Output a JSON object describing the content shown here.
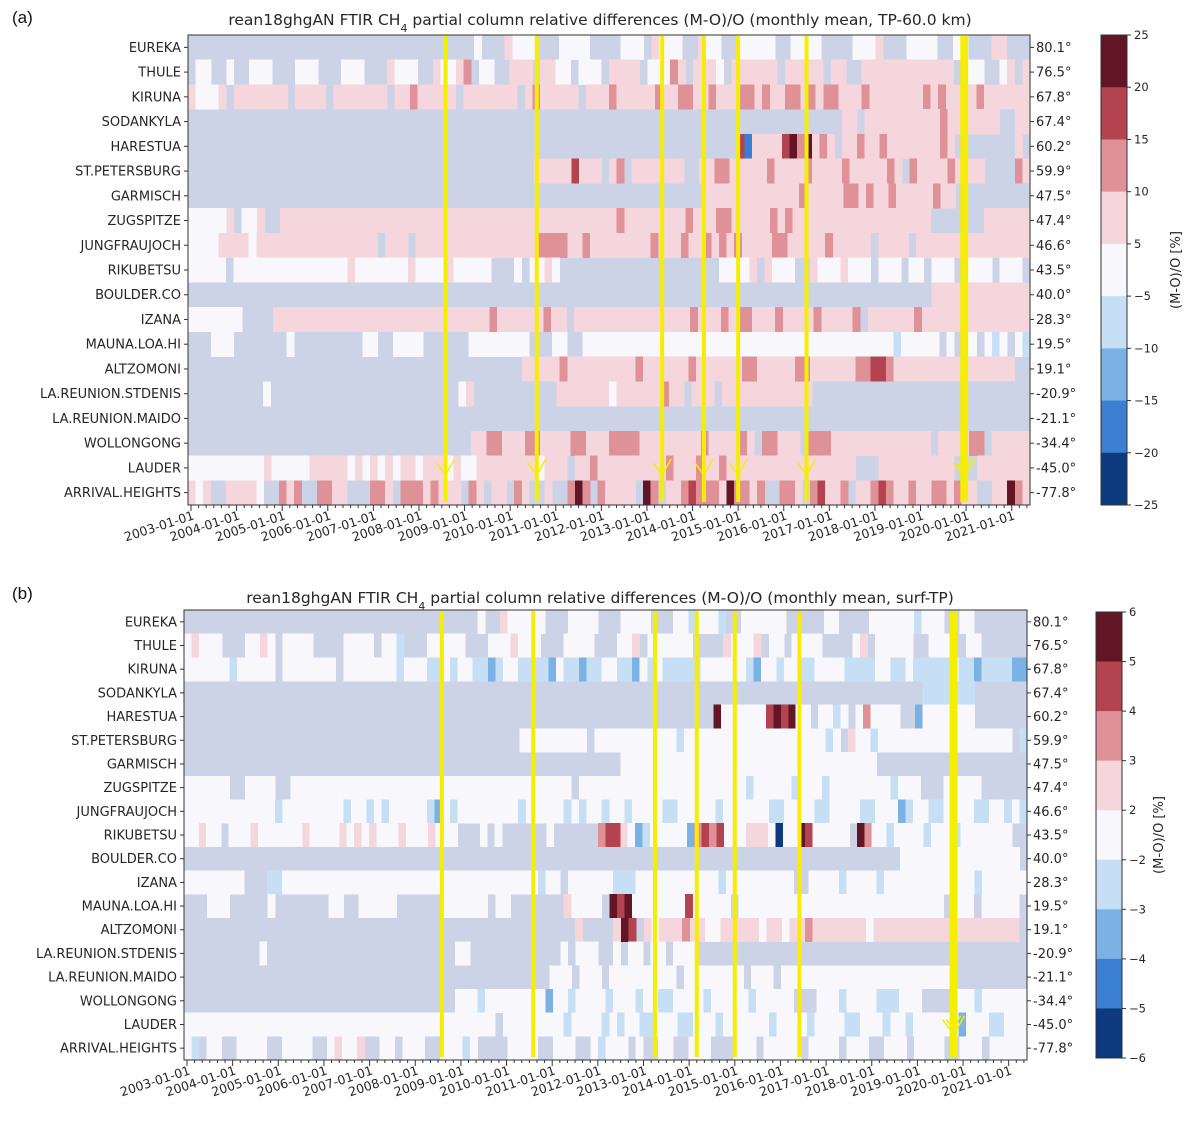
{
  "panels": [
    {
      "label": "(a)",
      "title_main": "rean18ghgAN FTIR CH",
      "title_sub": "4",
      "title_rest": " partial column relative differences (M-O)/O (monthly mean, TP-60.0 km)",
      "colorbar_label": "(M-O)/O [%]",
      "colorbar_ticks": [
        "25",
        "20",
        "15",
        "10",
        "5",
        "−5",
        "−10",
        "−15",
        "−20",
        "−25"
      ]
    },
    {
      "label": "(b)",
      "title_main": "rean18ghgAN FTIR CH",
      "title_sub": "4",
      "title_rest": " partial column relative differences (M-O)/O (monthly mean, surf-TP)",
      "colorbar_label": "(M-O)/O [%]",
      "colorbar_ticks": [
        "6",
        "5",
        "4",
        "3",
        "2",
        "−2",
        "−3",
        "−4",
        "−5",
        "−6"
      ]
    }
  ],
  "chart_data": [
    {
      "type": "heatmap",
      "title": "rean18ghgAN FTIR CH4 partial column relative differences (M-O)/O (monthly mean, TP-60.0 km)",
      "xlabel": "",
      "ylabel": "",
      "x_range": [
        "2003-01-01",
        "2021-06-01"
      ],
      "x_ticks": [
        "2003-01-01",
        "2004-01-01",
        "2005-01-01",
        "2006-01-01",
        "2007-01-01",
        "2008-01-01",
        "2009-01-01",
        "2010-01-01",
        "2011-01-01",
        "2012-01-01",
        "2013-01-01",
        "2014-01-01",
        "2015-01-01",
        "2016-01-01",
        "2017-01-01",
        "2018-01-01",
        "2019-01-01",
        "2020-01-01",
        "2021-01-01"
      ],
      "stations": [
        "EUREKA",
        "THULE",
        "KIRUNA",
        "SODANKYLA",
        "HARESTUA",
        "ST.PETERSBURG",
        "GARMISCH",
        "ZUGSPITZE",
        "JUNGFRAUJOCH",
        "RIKUBETSU",
        "BOULDER.CO",
        "IZANA",
        "MAUNA.LOA.HI",
        "ALTZOMONI",
        "LA.REUNION.STDENIS",
        "LA.REUNION.MAIDO",
        "WOLLONGONG",
        "LAUDER",
        "ARRIVAL.HEIGHTS"
      ],
      "latitudes": [
        "80.1°",
        "76.5°",
        "67.8°",
        "67.4°",
        "60.2°",
        "59.9°",
        "47.5°",
        "47.4°",
        "46.6°",
        "43.5°",
        "40.0°",
        "28.3°",
        "19.5°",
        "19.1°",
        "-20.9°",
        "-21.1°",
        "-34.4°",
        "-45.0°",
        "-77.8°"
      ],
      "colorbar": {
        "label": "(M-O)/O [%]",
        "range": [
          -25,
          25
        ],
        "bounds": [
          -25,
          -20,
          -15,
          -10,
          -5,
          5,
          10,
          15,
          20,
          25
        ],
        "colors": [
          "#0d3a7e",
          "#3b7fd0",
          "#7ab2e6",
          "#c6dff5",
          "#f8f8fc",
          "#f5d6dc",
          "#de9298",
          "#b3434f",
          "#611525"
        ],
        "no_data_color": "#cdd3e6"
      },
      "marker_dates": [
        "2008-08",
        "2010-08",
        "2013-05",
        "2014-04",
        "2015-01",
        "2016-07",
        "2019-12",
        "2020-01"
      ],
      "rows_encoding": "each character is one 2-month bin from 2003-01 to 2021-06; g=no data, w=[-5,5], p=[5,10], m=[10,15], r=[15,20], d=[20,25], b=[-10,-5], B=[-15,-10], C=[-20,-15], N=[-25,-20]",
      "rows": [
        "gggggggggggggggggggggggggggggggggggggwgggpwwwgggwwwwggggwwwgpwwwggpwwggwwwwwggwwwwggggwwwpgggwwwwggwwgggppggg",
        "gwwggwggwwwgggwwwgggwwwgggpwwwggpwwpmgwwggpppgppwwgwwwgppppgwwwmpgpppwgppppppgpppppgppggppppppppppppgwwwggwpgp",
        "pwwwpgpppppppgppppgpppppppgppmpppppgpppppppgpmpppppgpppmpppppmppmmppmpppmmpmppmmpmpmmpppmpppppppmpmppppmpppppp",
        "gggggggggggggggggggggggggggggggggggggggggggggggggggggggggggggggggggggggggggggggggggggggppgppppppppppmpppppppggpp",
        "gggggggggggggggggggggggggggggggggggggggggggggggggggggggggggggggggggggggggrCpppprdmdpmpgppmppmpppppppmpggggggggpg",
        "ggggggggggggggggggggggggggggggggggggggggggggggppppprpppgpmgpppppppggppmmpppppmppppmppppmpppppmpgmppppmppppggggmp",
        "gggggggggggggggggggggggggggggggggggggggggggggggggggggggggggggggggggggpppppppppppppmpppppmmpmppmpppppmppgggggggggg",
        "wwwwwpgwwpggppppppppppppppppppppppppppppppppppppppppppppmppppppppmpppmmpppppmpmppppppppppppppppppgggggggpppppp",
        "wwwwppppwppppppppppppppppgpppgppppppppppppppppmmmmppmppppppppmpppmppmpmpmppppmmpppppmpppppgppppgppppppppppppppp",
        "wwwwwgwwwwwwwwwwwwwwwpwwwwwwwpwwwwpwwwwwgggwgwwpwgggggggggggggggggggggwwwwpgpwwwggpwwwpwwwgwwwgwwgwwwgwwwwgwwwg",
        "ggggggggggggggggggggggggggggggggggggggggggggggggggggggggggggggggggggggggggggggggggggggggggggggggggppppppppppppp",
        "wwwwwwwggggppppppppppppppppppppppppppppmppppppmppgpppppppppppppppmpppmpmmpppmppppmppppmgppppppmpppppppppppppp",
        "gggwwwgggggggwgggggggggwwggwwwwggggggwwwwwwwwgggwwggwwwwwwwwwwwwwwwwwwwwwwwwwwwwwwwwwwwwwwwwwbwwwwwgwgwwgwbwgwb",
        "ggggggggggggggggggggggggggggggggggggggggggggpppppmpppppppppmppppppmppppppmmpppppmmppppppmmrrmppppppppppppppppgg",
        "ggggggggggwgggggggggggggggggggggggggwpgggggggggggpppppppwppppppmppgpppgppppppppppppggggggggggggggggggggggggggggg",
        "gggggggggggggggggggggggggggggggggggggggggggggggggggggggggggggggggggggggggggggggggggggggggggggggggggggggggggggggg",
        "gggggggggggggggggggggggggggggggggggggppmmpppmmppppmmpppmmmmppppppppmppppmpgmmpppgmmmpppppppppppppgppppmmgppppp",
        "wwwwwwwwwwpwwwwwpppppwpwpwpwppwpppwpwwppppppppwpppgppmpppppppppmpppmppmpppppppppppppppppgggppppppppppgggppppppp",
        "pwpggppppwggmpmggmmppgggmmpgmmmpmpppgmpgppgmpggpggmdmgmppppgdmgppmrmmmpdmmpmggmmpgmrppmgppmrmppmppmmpmppggppdmp"
      ]
    },
    {
      "type": "heatmap",
      "title": "rean18ghgAN FTIR CH4 partial column relative differences (M-O)/O (monthly mean, surf-TP)",
      "xlabel": "",
      "ylabel": "",
      "x_range": [
        "2003-01-01",
        "2021-06-01"
      ],
      "x_ticks": [
        "2003-01-01",
        "2004-01-01",
        "2005-01-01",
        "2006-01-01",
        "2007-01-01",
        "2008-01-01",
        "2009-01-01",
        "2010-01-01",
        "2011-01-01",
        "2012-01-01",
        "2013-01-01",
        "2014-01-01",
        "2015-01-01",
        "2016-01-01",
        "2017-01-01",
        "2018-01-01",
        "2019-01-01",
        "2020-01-01",
        "2021-01-01"
      ],
      "stations": [
        "EUREKA",
        "THULE",
        "KIRUNA",
        "SODANKYLA",
        "HARESTUA",
        "ST.PETERSBURG",
        "GARMISCH",
        "ZUGSPITZE",
        "JUNGFRAUJOCH",
        "RIKUBETSU",
        "BOULDER.CO",
        "IZANA",
        "MAUNA.LOA.HI",
        "ALTZOMONI",
        "LA.REUNION.STDENIS",
        "LA.REUNION.MAIDO",
        "WOLLONGONG",
        "LAUDER",
        "ARRIVAL.HEIGHTS"
      ],
      "latitudes": [
        "80.1°",
        "76.5°",
        "67.8°",
        "67.4°",
        "60.2°",
        "59.9°",
        "47.5°",
        "47.4°",
        "46.6°",
        "43.5°",
        "40.0°",
        "28.3°",
        "19.5°",
        "19.1°",
        "-20.9°",
        "-21.1°",
        "-34.4°",
        "-45.0°",
        "-77.8°"
      ],
      "colorbar": {
        "label": "(M-O)/O [%]",
        "range": [
          -6,
          6
        ],
        "bounds": [
          -6,
          -5,
          -4,
          -3,
          -2,
          2,
          3,
          4,
          5,
          6
        ],
        "colors": [
          "#0d3a7e",
          "#3b7fd0",
          "#7ab2e6",
          "#c6dff5",
          "#f8f8fc",
          "#f5d6dc",
          "#de9298",
          "#b3434f",
          "#611525"
        ],
        "no_data_color": "#cdd3e6"
      },
      "marker_dates": [
        "2008-08",
        "2010-08",
        "2013-04",
        "2014-03",
        "2015-01",
        "2016-06",
        "2019-10",
        "2019-11"
      ],
      "rows_encoding": "each character is one 2-month bin from 2003-01 to 2021-06; g=no data, w=[-2,2], p=[2,3], m=[3,4], r=[4,5], d=[5,6], b=[-3,-2], B=[-4,-3], C=[-5,-4], N=[-6,-5]",
      "rows": [
        "gggggggggggggggggggggggggggggggggggggggwggpwwwwwgggwwwwgggwwwwgggwwbwwwbggwwwwwwgggggwwggggwwwwwwbwwwggwwggggggg",
        "wpwwwgggwwpwgwwwwggggwwwwgwwbgggwwwwwgggwwwpwwwgggwwwwgggwwpgwwwwwwggggpwwwpgwwgwwwwggggwpgwwwwwggwwwggwwgggggg",
        "wwwwwwbwwwwwgwwwwwwwgwwwwwwwbwwwbbwbwwbbBbwwbbbbBwbbBbbwwbbBwbwbbbbbwwwwwwbBwwbwwbbwwwwbbbbwwbbwbbbbbwbbBbbbbBB",
        "gggggggggggggggggggggggggggggggggggggggggggggggggggggggggggggggggggggggggggggggggggggggggggggggggggbbbbbbbggggggg",
        "gggggggggggggggggggggggggggggggggggggggggggggggggggggggggggggggggggggggdwwwwwwrdrdwwgwwbwgwmwwwwggBwwwwwwwggggggg",
        "gggggggggggggggggggggggggggggggggggggggggggggwwwwwwwwwgwwwwwwwwwwwbwwwwwwwwwwwwwwwwwwwbwgpwwbwwwwwwwwwwwwwwwwwwgb",
        "ggggggggggggggggggggggggggggggggggggggggggggggggggggggggggwwwwwwwwwwwwwwwwwwwwwwwwwwwwwwwwwwgggggggggggggggggggg",
        "wwwwwwggwwwwggwwwwwwwwwwwwwwwwwwwwwwwwwwwwwwwwwwwwwgwwwwwwwwwwwwwwwwwwwwwwbwwwwwbwwwbwwwwwwwwbwwwgggwwwwwgggggg",
        "wwwwwwwwwwwwbwwwwwwwwbwwbwbwwwwwbBwbwwwwwwwwbwwwwwbwbwwbwwbwwwwbbwwwwwbwwwwwwbbwwwwbbwwwwbbwwwBbwwbbwwwwbbwwbwb",
        "wwpwwgwwwpwwwwwwpwwwwpwpwpwwwpwwwpwwwgggwgwggggggwggggggmrrpwBbwwwwwBmrmrwwwpppwNwwdrwwwwwgdmwwbwwwwbwwwbwwwwwwwgg",
        "ggggggggggggggggggggggggggggggggggggggggggggggggggggggggggggggggggggggggggggggggggggggggggggggggwwwwwwwwwwwwwwwwg",
        "wwwwwwwwgggbbwwwwwwwwwwwwwwwwwwwwwwwwwwwwwwwwwwbwwgwwwwwwbbbwwwwwwwwwwwbwwwwwwwwwggwwwwbwwwwbwwwwwwwwwwwwbwwwwww",
        "gggwwwgggggwgggggggwwggwwwwwggggggwwwwwwgwwgggggggpwwwwgdrdwwwwwwwrwwwwwgwwwwwwwwwwwwwwwwwwwwwwwwwwwgwwwgwwwwwg",
        "gggggggggggggggggggggggggggggggggggggggggggggggggggpggggpdrgpwpppmppwwpppppwppwppmpppppppwpppppppppppppppppppg",
        "ggggggggggwgggggggggggggggggggggggggwwggggggggggggwgwwwggwgwwgwwgwwwgggggggggggggggggggggggggggggggggggggggggggg",
        "gggggggggggggggggggggggggggggggggggggggggggggggggwwwgwwwgwwwwwwwwwgwwwwwwwwgwwwgwwwwwwwwwwwwwwwwwwwwwwwgggggggggg",
        "ggggggggggggggggggggggggggggggggggggwwwbwwwwwwwwBwwbwwwwbwwwbwwbbwwwwbwwwwwbwwwwwgggwwwbwwwwbbbwwwggggwwwbwwwwww",
        "wwwwwwwwwwwwwwwwwwwwwwwwwwwwwwwwwwwwwwwwwgwwwwwwwwbwwwwbwbwwbbwwwbbwwwbwwwwwwbwwwwbwwwwbbwwwbwwbwwwwwwBwwwbbwww",
        "wbgwwggwwwwggwwwwggwpwwpggwwgwwwggwwwbwggggwwwwggwwwggwbwwwgwggwwggwwwgggwwwgwwwwwgwwwwgwwwggwwwgwwwwggwwwgwwwww"
      ]
    }
  ]
}
